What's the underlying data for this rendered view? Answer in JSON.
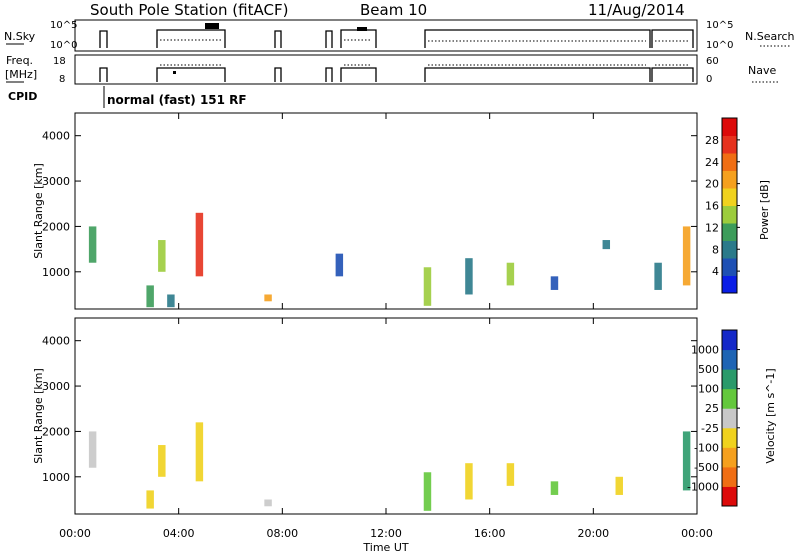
{
  "header": {
    "title": "South Pole Station (fitACF)",
    "beam": "Beam 10",
    "date": "11/Aug/2014"
  },
  "summary": {
    "nsky_label": "N.Sky",
    "nsearch_label": "N.Search",
    "freq_label_1": "Freq.",
    "freq_label_2": "[MHz]",
    "nave_label": "Nave",
    "cpid_label": "CPID",
    "cpid_text": "normal (fast) 151 RF",
    "noise_ticks": [
      "10^5",
      "10^0"
    ],
    "freq_ticks": [
      "18",
      "8"
    ],
    "nave_ticks": [
      "60",
      "0"
    ]
  },
  "chart_data": [
    {
      "type": "heatmap",
      "title": "",
      "xlabel": "",
      "ylabel": "Slant Range [km]",
      "xlim": [
        0,
        24
      ],
      "ylim": [
        180,
        4500
      ],
      "x_tick_labels": [
        "00:00",
        "04:00",
        "08:00",
        "12:00",
        "16:00",
        "20:00",
        "00:00"
      ],
      "y_tick_labels": [
        "1000",
        "2000",
        "3000",
        "4000"
      ],
      "colorbar": {
        "label": "Power [dB]",
        "tick_labels": [
          "4",
          "8",
          "12",
          "16",
          "20",
          "24",
          "28"
        ],
        "range": [
          0,
          30
        ],
        "colors": [
          "#0a1ee6",
          "#1e50b4",
          "#2a7a8a",
          "#3c9c5a",
          "#9ccc3c",
          "#f0d21e",
          "#f5a01e",
          "#f06e14",
          "#e6321e",
          "#dc0a0a"
        ]
      },
      "patches": [
        {
          "t": 0.68,
          "r0": 1200,
          "r1": 2000,
          "v": 10
        },
        {
          "t": 2.9,
          "r0": 220,
          "r1": 700,
          "v": 9
        },
        {
          "t": 3.35,
          "r0": 1000,
          "r1": 1700,
          "v": 14
        },
        {
          "t": 3.7,
          "r0": 220,
          "r1": 500,
          "v": 6
        },
        {
          "t": 4.8,
          "r0": 900,
          "r1": 2300,
          "v": 24
        },
        {
          "t": 7.45,
          "r0": 350,
          "r1": 500,
          "v": 18
        },
        {
          "t": 10.2,
          "r0": 900,
          "r1": 1400,
          "v": 4
        },
        {
          "t": 13.6,
          "r0": 250,
          "r1": 1100,
          "v": 12
        },
        {
          "t": 15.2,
          "r0": 500,
          "r1": 1300,
          "v": 8
        },
        {
          "t": 16.8,
          "r0": 700,
          "r1": 1200,
          "v": 14
        },
        {
          "t": 18.5,
          "r0": 600,
          "r1": 900,
          "v": 5
        },
        {
          "t": 20.5,
          "r0": 1500,
          "r1": 1700,
          "v": 6
        },
        {
          "t": 22.5,
          "r0": 600,
          "r1": 1200,
          "v": 7
        },
        {
          "t": 23.6,
          "r0": 700,
          "r1": 2000,
          "v": 20
        }
      ]
    },
    {
      "type": "heatmap",
      "title": "",
      "xlabel": "Time UT",
      "ylabel": "Slant Range [km]",
      "xlim": [
        0,
        24
      ],
      "ylim": [
        180,
        4500
      ],
      "x_tick_labels": [
        "00:00",
        "04:00",
        "08:00",
        "12:00",
        "16:00",
        "20:00",
        "00:00"
      ],
      "y_tick_labels": [
        "1000",
        "2000",
        "3000",
        "4000"
      ],
      "colorbar": {
        "label": "Velocity [m s^-1]",
        "tick_labels": [
          "1000",
          "500",
          "100",
          "25",
          "-25",
          "-100",
          "-500",
          "-1000"
        ],
        "range": [
          -1200,
          1200
        ],
        "colors": [
          "#dc0a0a",
          "#f06e14",
          "#f5a01e",
          "#f0d21e",
          "#c8c8c8",
          "#64c83c",
          "#2a9a6a",
          "#1e64b4",
          "#1428c8"
        ]
      },
      "patches": [
        {
          "t": 0.68,
          "r0": 1200,
          "r1": 2000,
          "v": -80
        },
        {
          "t": 2.9,
          "r0": 300,
          "r1": 700,
          "v": -300
        },
        {
          "t": 3.35,
          "r0": 1000,
          "r1": 1700,
          "v": -200
        },
        {
          "t": 4.8,
          "r0": 900,
          "r1": 2200,
          "v": -400
        },
        {
          "t": 7.45,
          "r0": 350,
          "r1": 500,
          "v": -80
        },
        {
          "t": 13.6,
          "r0": 250,
          "r1": 1100,
          "v": 150
        },
        {
          "t": 15.2,
          "r0": 500,
          "r1": 1300,
          "v": -300
        },
        {
          "t": 16.8,
          "r0": 800,
          "r1": 1300,
          "v": -200
        },
        {
          "t": 18.5,
          "r0": 600,
          "r1": 900,
          "v": 200
        },
        {
          "t": 21.0,
          "r0": 600,
          "r1": 1000,
          "v": -150
        },
        {
          "t": 23.6,
          "r0": 700,
          "r1": 2000,
          "v": 600
        }
      ]
    }
  ]
}
